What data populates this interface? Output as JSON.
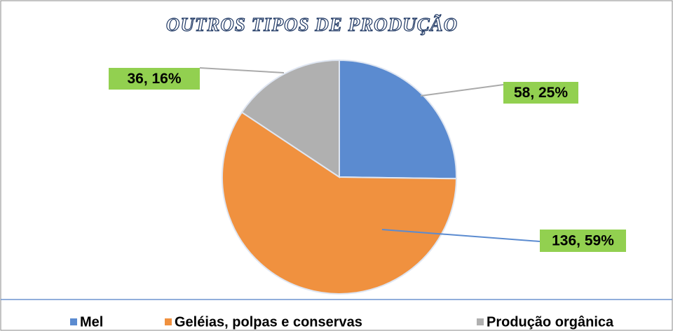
{
  "chart_data": {
    "type": "pie",
    "title": "OUTROS TIPOS DE PRODUÇÃO",
    "categories": [
      "Mel",
      "Geléias,  polpas e conservas",
      "Produção orgânica"
    ],
    "values": [
      58,
      136,
      36
    ],
    "value_labels": [
      "58, 25%",
      "136, 59%",
      "36, 16%"
    ],
    "colors": [
      "#5b8bd0",
      "#f0913f",
      "#b0b0b0"
    ],
    "label_color": "#92d050",
    "legend": "bottom"
  }
}
